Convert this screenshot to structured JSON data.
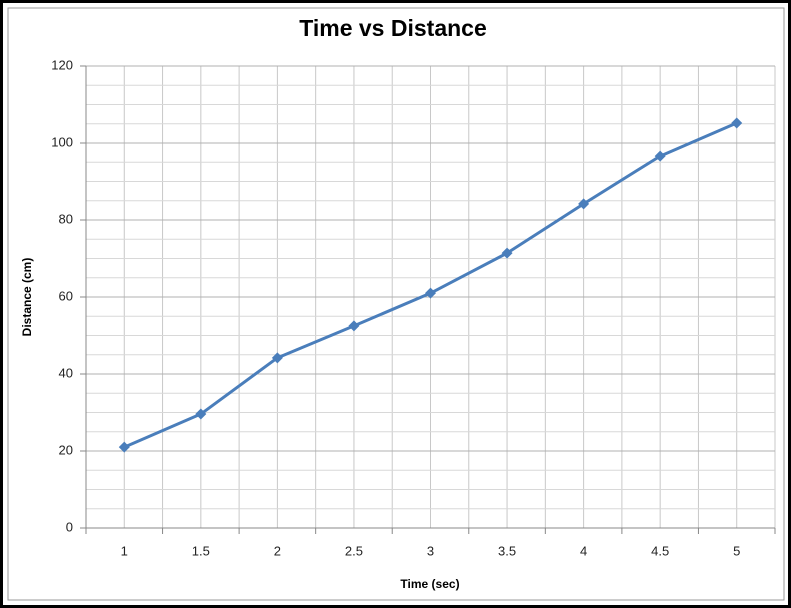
{
  "chart_data": {
    "type": "line",
    "title": "Time vs Distance",
    "x_label": "Time (sec)",
    "y_label": "Distance (cm)",
    "categories": [
      1,
      1.5,
      2,
      2.5,
      3,
      3.5,
      4,
      4.5,
      5
    ],
    "series": [
      {
        "name": "Distance",
        "color": "#4a7ebb",
        "values": [
          21,
          29.6,
          44.2,
          52.5,
          61,
          71.4,
          84.2,
          96.6,
          105.2
        ]
      }
    ],
    "ylim": [
      0,
      120
    ],
    "yticks": [
      0,
      20,
      40,
      60,
      80,
      100,
      120
    ],
    "grid": true,
    "minor_grid": true,
    "legend": false
  }
}
